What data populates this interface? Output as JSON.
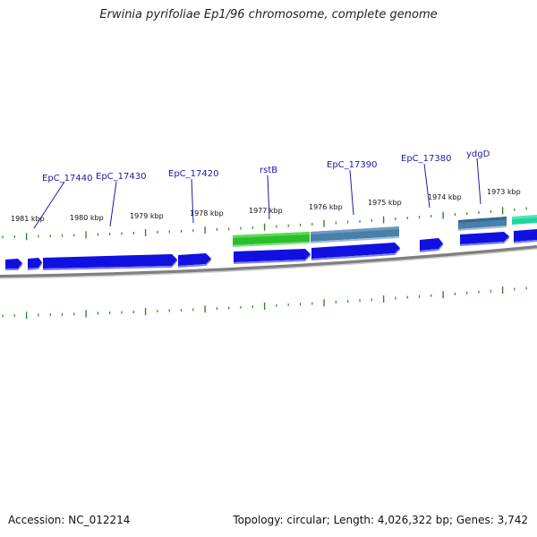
{
  "title": "Erwinia pyrifoliae Ep1/96 chromosome, complete genome",
  "footer": {
    "accession": "Accession: NC_012214",
    "topology": "Topology: circular; Length: 4,026,322 bp; Genes: 3,742"
  },
  "scale_labels": [
    "1981 kbp",
    "1980 kbp",
    "1979 kbp",
    "1978 kbp",
    "1977 kbp",
    "1976 kbp",
    "1975 kbp",
    "1974 kbp",
    "1973 kbp"
  ],
  "gene_labels": [
    "EpC_17440",
    "EpC_17430",
    "EpC_17420",
    "rstB",
    "EpC_17390",
    "EpC_17380",
    "ydgD"
  ],
  "colors": {
    "cds": "#1010e0",
    "gene_steelblue": "#4a7fa8",
    "gene_green": "#2cbf2c",
    "gene_teal": "#1fd6a0",
    "tick": "#2a8a2a",
    "backbone": "#888888",
    "label": "#1a1aa6"
  }
}
